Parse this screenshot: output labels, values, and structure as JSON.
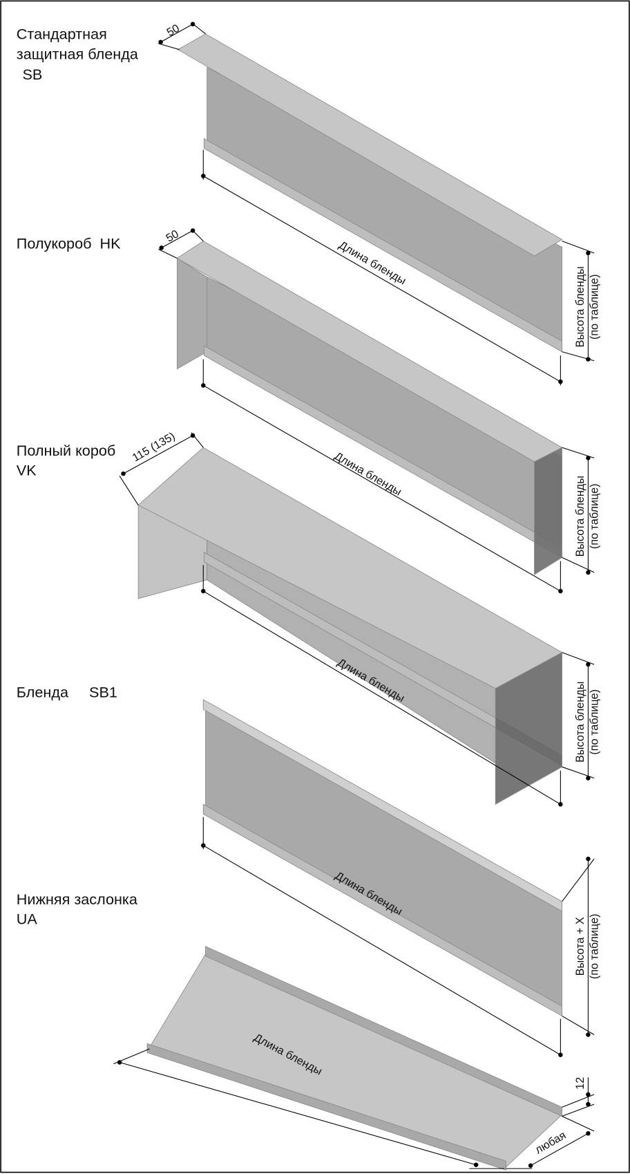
{
  "items": [
    {
      "title": [
        "Стандартная",
        "защитная бленда",
        "SB"
      ],
      "width": "50",
      "length": "Длина бленды",
      "height": [
        "Высота бленды",
        "(по таблице)"
      ]
    },
    {
      "title": [
        "Полукороб  HK"
      ],
      "width": "50",
      "length": "Длина бленды",
      "height": [
        "Высота бленды",
        "(по таблице)"
      ]
    },
    {
      "title": [
        "Полный короб",
        "VK"
      ],
      "width": "115 (135)",
      "length": "Длина бленды",
      "height": [
        "Высота бленды",
        "(по таблице)"
      ]
    },
    {
      "title": [
        "Бленда     SB1"
      ],
      "length": "Длина бленды",
      "height": [
        "Высота + X",
        "(по таблице)"
      ]
    },
    {
      "title": [
        "Нижняя заслонка",
        "UA"
      ],
      "length": "Длина бленды",
      "lip": "12",
      "width": "любая"
    }
  ]
}
